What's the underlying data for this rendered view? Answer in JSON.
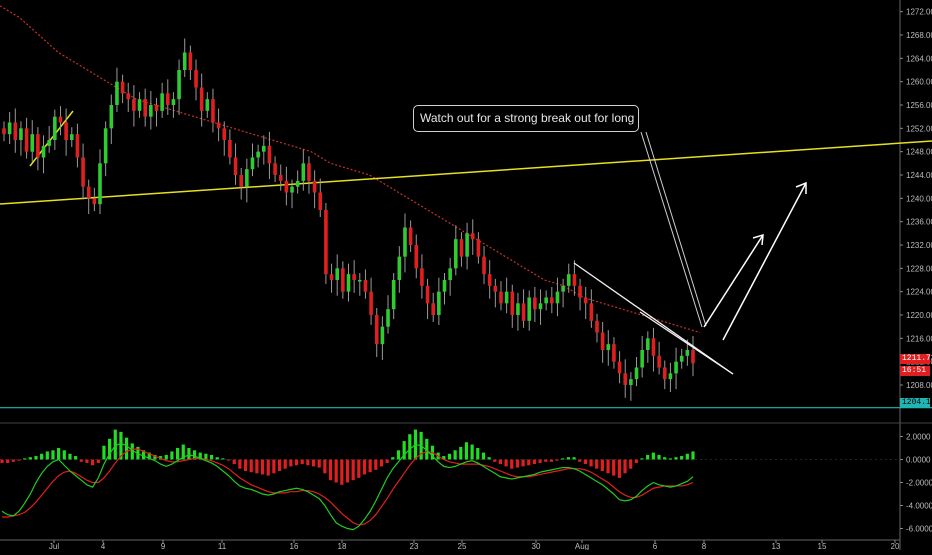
{
  "chart_data": [
    {
      "type": "candlestick",
      "title": "",
      "ylim": [
        1202,
        1274
      ],
      "yticks": [
        "1272.00",
        "1268.00",
        "1264.00",
        "1260.00",
        "1256.00",
        "1252.00",
        "1248.00",
        "1244.00",
        "1240.00",
        "1236.00",
        "1232.00",
        "1228.00",
        "1224.00",
        "1220.00",
        "1216.00",
        "1212.00",
        "1208.00"
      ],
      "x_labels": [
        "Jul",
        "4",
        "9",
        "11",
        "16",
        "18",
        "23",
        "25",
        "30",
        "Aug",
        "6",
        "8",
        "13",
        "15",
        "20"
      ],
      "price_tags": {
        "last": "1211.73",
        "countdown": "16:51",
        "support_level": "1204.11"
      },
      "support_level": 1204.11,
      "annotation": "Watch out for a strong break out for long",
      "colors": {
        "up": "#2ecc2e",
        "down": "#e02020",
        "trendline": "#e6e020",
        "support": "#1fb5b5",
        "ma": "#c83030"
      },
      "closes": [
        1251,
        1253,
        1250,
        1252,
        1248,
        1251,
        1247,
        1249,
        1250,
        1254,
        1253,
        1250,
        1251,
        1247,
        1242,
        1240,
        1239,
        1246,
        1252,
        1256,
        1260,
        1258,
        1257,
        1255,
        1257,
        1254,
        1256,
        1255,
        1258,
        1256,
        1257,
        1262,
        1265,
        1262,
        1259,
        1255,
        1257,
        1253,
        1252,
        1250,
        1247,
        1244,
        1242,
        1245,
        1247,
        1248,
        1249,
        1246,
        1244,
        1243,
        1241,
        1242,
        1243,
        1246,
        1243,
        1241,
        1238,
        1227,
        1226,
        1228,
        1224,
        1227,
        1226,
        1226,
        1224,
        1220,
        1215,
        1218,
        1221,
        1226,
        1230,
        1235,
        1232,
        1228,
        1225,
        1222,
        1220,
        1224,
        1226,
        1228,
        1233,
        1230,
        1234,
        1233,
        1230,
        1227,
        1225,
        1224,
        1222,
        1224,
        1220,
        1222,
        1219,
        1223,
        1221,
        1222,
        1223,
        1222,
        1224,
        1225,
        1227,
        1225,
        1223,
        1222,
        1219,
        1217,
        1214,
        1215,
        1212,
        1210,
        1208,
        1209,
        1211,
        1214,
        1216,
        1213,
        1211,
        1209,
        1210,
        1212,
        1213,
        1214,
        1211.73
      ],
      "ma_y": [
        1273,
        1271,
        1268,
        1265,
        1263,
        1261,
        1259,
        1257,
        1256,
        1255,
        1254,
        1253,
        1252,
        1251,
        1250,
        1249,
        1248,
        1246,
        1245,
        1244,
        1242,
        1240,
        1238,
        1236,
        1234,
        1232,
        1230,
        1228,
        1226,
        1225,
        1223,
        1222,
        1221,
        1220,
        1219,
        1218,
        1217
      ],
      "macd_ylim": [
        -7,
        3
      ],
      "macd_yticks": [
        "2.0000",
        "0.0000",
        "-2.0000",
        "-4.0000",
        "-6.0000"
      ],
      "macd_hist": [
        -0.3,
        -0.3,
        -0.2,
        -0.1,
        0.1,
        0.2,
        0.3,
        0.5,
        0.7,
        0.8,
        1.0,
        0.8,
        0.5,
        0.3,
        -0.2,
        -0.3,
        -0.5,
        -0.3,
        1.2,
        1.8,
        2.6,
        2.4,
        1.9,
        1.4,
        1.1,
        0.8,
        0.6,
        0.4,
        0.3,
        0.4,
        0.7,
        1.0,
        1.3,
        1.0,
        0.8,
        0.6,
        0.5,
        0.4,
        0.2,
        0.1,
        -0.1,
        -0.4,
        -0.8,
        -1.0,
        -1.1,
        -1.2,
        -1.3,
        -1.4,
        -1.2,
        -1.0,
        -0.8,
        -0.6,
        -0.5,
        -0.4,
        -0.5,
        -0.6,
        -0.7,
        -1.2,
        -1.8,
        -2.0,
        -2.2,
        -2.0,
        -1.8,
        -1.6,
        -1.3,
        -1.1,
        -0.9,
        -0.6,
        -0.3,
        0.2,
        0.8,
        1.6,
        2.2,
        2.6,
        2.4,
        1.8,
        1.2,
        0.6,
        0.3,
        0.5,
        0.8,
        1.1,
        1.5,
        1.3,
        1.0,
        0.6,
        0.2,
        -0.2,
        -0.4,
        -0.6,
        -0.8,
        -0.7,
        -0.6,
        -0.5,
        -0.4,
        -0.3,
        -0.2,
        -0.2,
        -0.1,
        0.1,
        0.2,
        0.2,
        -0.2,
        -0.4,
        -0.6,
        -0.8,
        -1.0,
        -1.2,
        -1.4,
        -1.6,
        -1.2,
        -0.8,
        -0.3,
        0.1,
        0.4,
        0.6,
        0.4,
        0.2,
        0.1,
        0.2,
        0.3,
        0.5,
        0.7
      ],
      "macd_line": [
        -4.5,
        -4.8,
        -4.9,
        -4.5,
        -3.8,
        -3.0,
        -2.0,
        -1.2,
        -0.6,
        -0.2,
        0.0,
        -0.5,
        -1.0,
        -1.4,
        -1.8,
        -2.2,
        -2.4,
        -1.6,
        -0.4,
        0.5,
        1.2,
        1.4,
        1.2,
        0.8,
        0.5,
        0.3,
        0.1,
        -0.1,
        -0.4,
        -0.6,
        -0.4,
        -0.1,
        0.2,
        0.4,
        0.3,
        0.1,
        -0.1,
        -0.3,
        -0.6,
        -1.0,
        -1.4,
        -1.9,
        -2.3,
        -2.5,
        -2.6,
        -2.8,
        -3.0,
        -3.1,
        -3.0,
        -2.8,
        -2.7,
        -2.6,
        -2.5,
        -2.6,
        -2.8,
        -3.1,
        -3.4,
        -4.0,
        -4.8,
        -5.5,
        -5.8,
        -6.0,
        -6.1,
        -5.8,
        -5.2,
        -4.5,
        -3.6,
        -2.6,
        -1.6,
        -0.8,
        -0.2,
        0.4,
        0.9,
        1.3,
        1.2,
        0.8,
        0.3,
        -0.2,
        -0.6,
        -0.7,
        -0.6,
        -0.4,
        -0.2,
        -0.1,
        -0.3,
        -0.6,
        -0.9,
        -1.2,
        -1.5,
        -1.6,
        -1.7,
        -1.6,
        -1.5,
        -1.4,
        -1.3,
        -1.1,
        -1.0,
        -0.9,
        -0.8,
        -0.7,
        -0.7,
        -0.8,
        -1.0,
        -1.3,
        -1.6,
        -1.9,
        -2.2,
        -2.6,
        -3.0,
        -3.5,
        -3.6,
        -3.5,
        -3.2,
        -2.7,
        -2.3,
        -2.0,
        -2.2,
        -2.3,
        -2.4,
        -2.3,
        -2.1,
        -1.9,
        -1.5
      ],
      "signal_line": [
        -5.0,
        -5.0,
        -4.9,
        -4.8,
        -4.6,
        -4.2,
        -3.7,
        -3.1,
        -2.5,
        -1.9,
        -1.4,
        -1.1,
        -1.0,
        -1.2,
        -1.5,
        -1.8,
        -2.0,
        -2.0,
        -1.6,
        -1.0,
        -0.3,
        0.3,
        0.7,
        0.9,
        0.9,
        0.7,
        0.5,
        0.3,
        0.1,
        -0.1,
        -0.2,
        -0.2,
        -0.1,
        0.0,
        0.1,
        0.1,
        0.0,
        -0.1,
        -0.3,
        -0.5,
        -0.8,
        -1.2,
        -1.6,
        -1.9,
        -2.2,
        -2.4,
        -2.6,
        -2.8,
        -2.9,
        -2.9,
        -2.9,
        -2.8,
        -2.8,
        -2.7,
        -2.7,
        -2.8,
        -3.0,
        -3.3,
        -3.7,
        -4.2,
        -4.7,
        -5.1,
        -5.5,
        -5.7,
        -5.6,
        -5.3,
        -4.8,
        -4.1,
        -3.4,
        -2.6,
        -1.9,
        -1.2,
        -0.5,
        0.1,
        0.5,
        0.7,
        0.6,
        0.3,
        0.0,
        -0.2,
        -0.3,
        -0.4,
        -0.4,
        -0.4,
        -0.4,
        -0.5,
        -0.6,
        -0.8,
        -1.0,
        -1.2,
        -1.4,
        -1.5,
        -1.5,
        -1.5,
        -1.4,
        -1.3,
        -1.2,
        -1.1,
        -1.0,
        -0.9,
        -0.8,
        -0.8,
        -0.8,
        -0.9,
        -1.1,
        -1.4,
        -1.7,
        -2.0,
        -2.4,
        -2.8,
        -3.1,
        -3.3,
        -3.3,
        -3.1,
        -2.8,
        -2.5,
        -2.4,
        -2.3,
        -2.3,
        -2.3,
        -2.3,
        -2.2,
        -2.0
      ]
    }
  ]
}
